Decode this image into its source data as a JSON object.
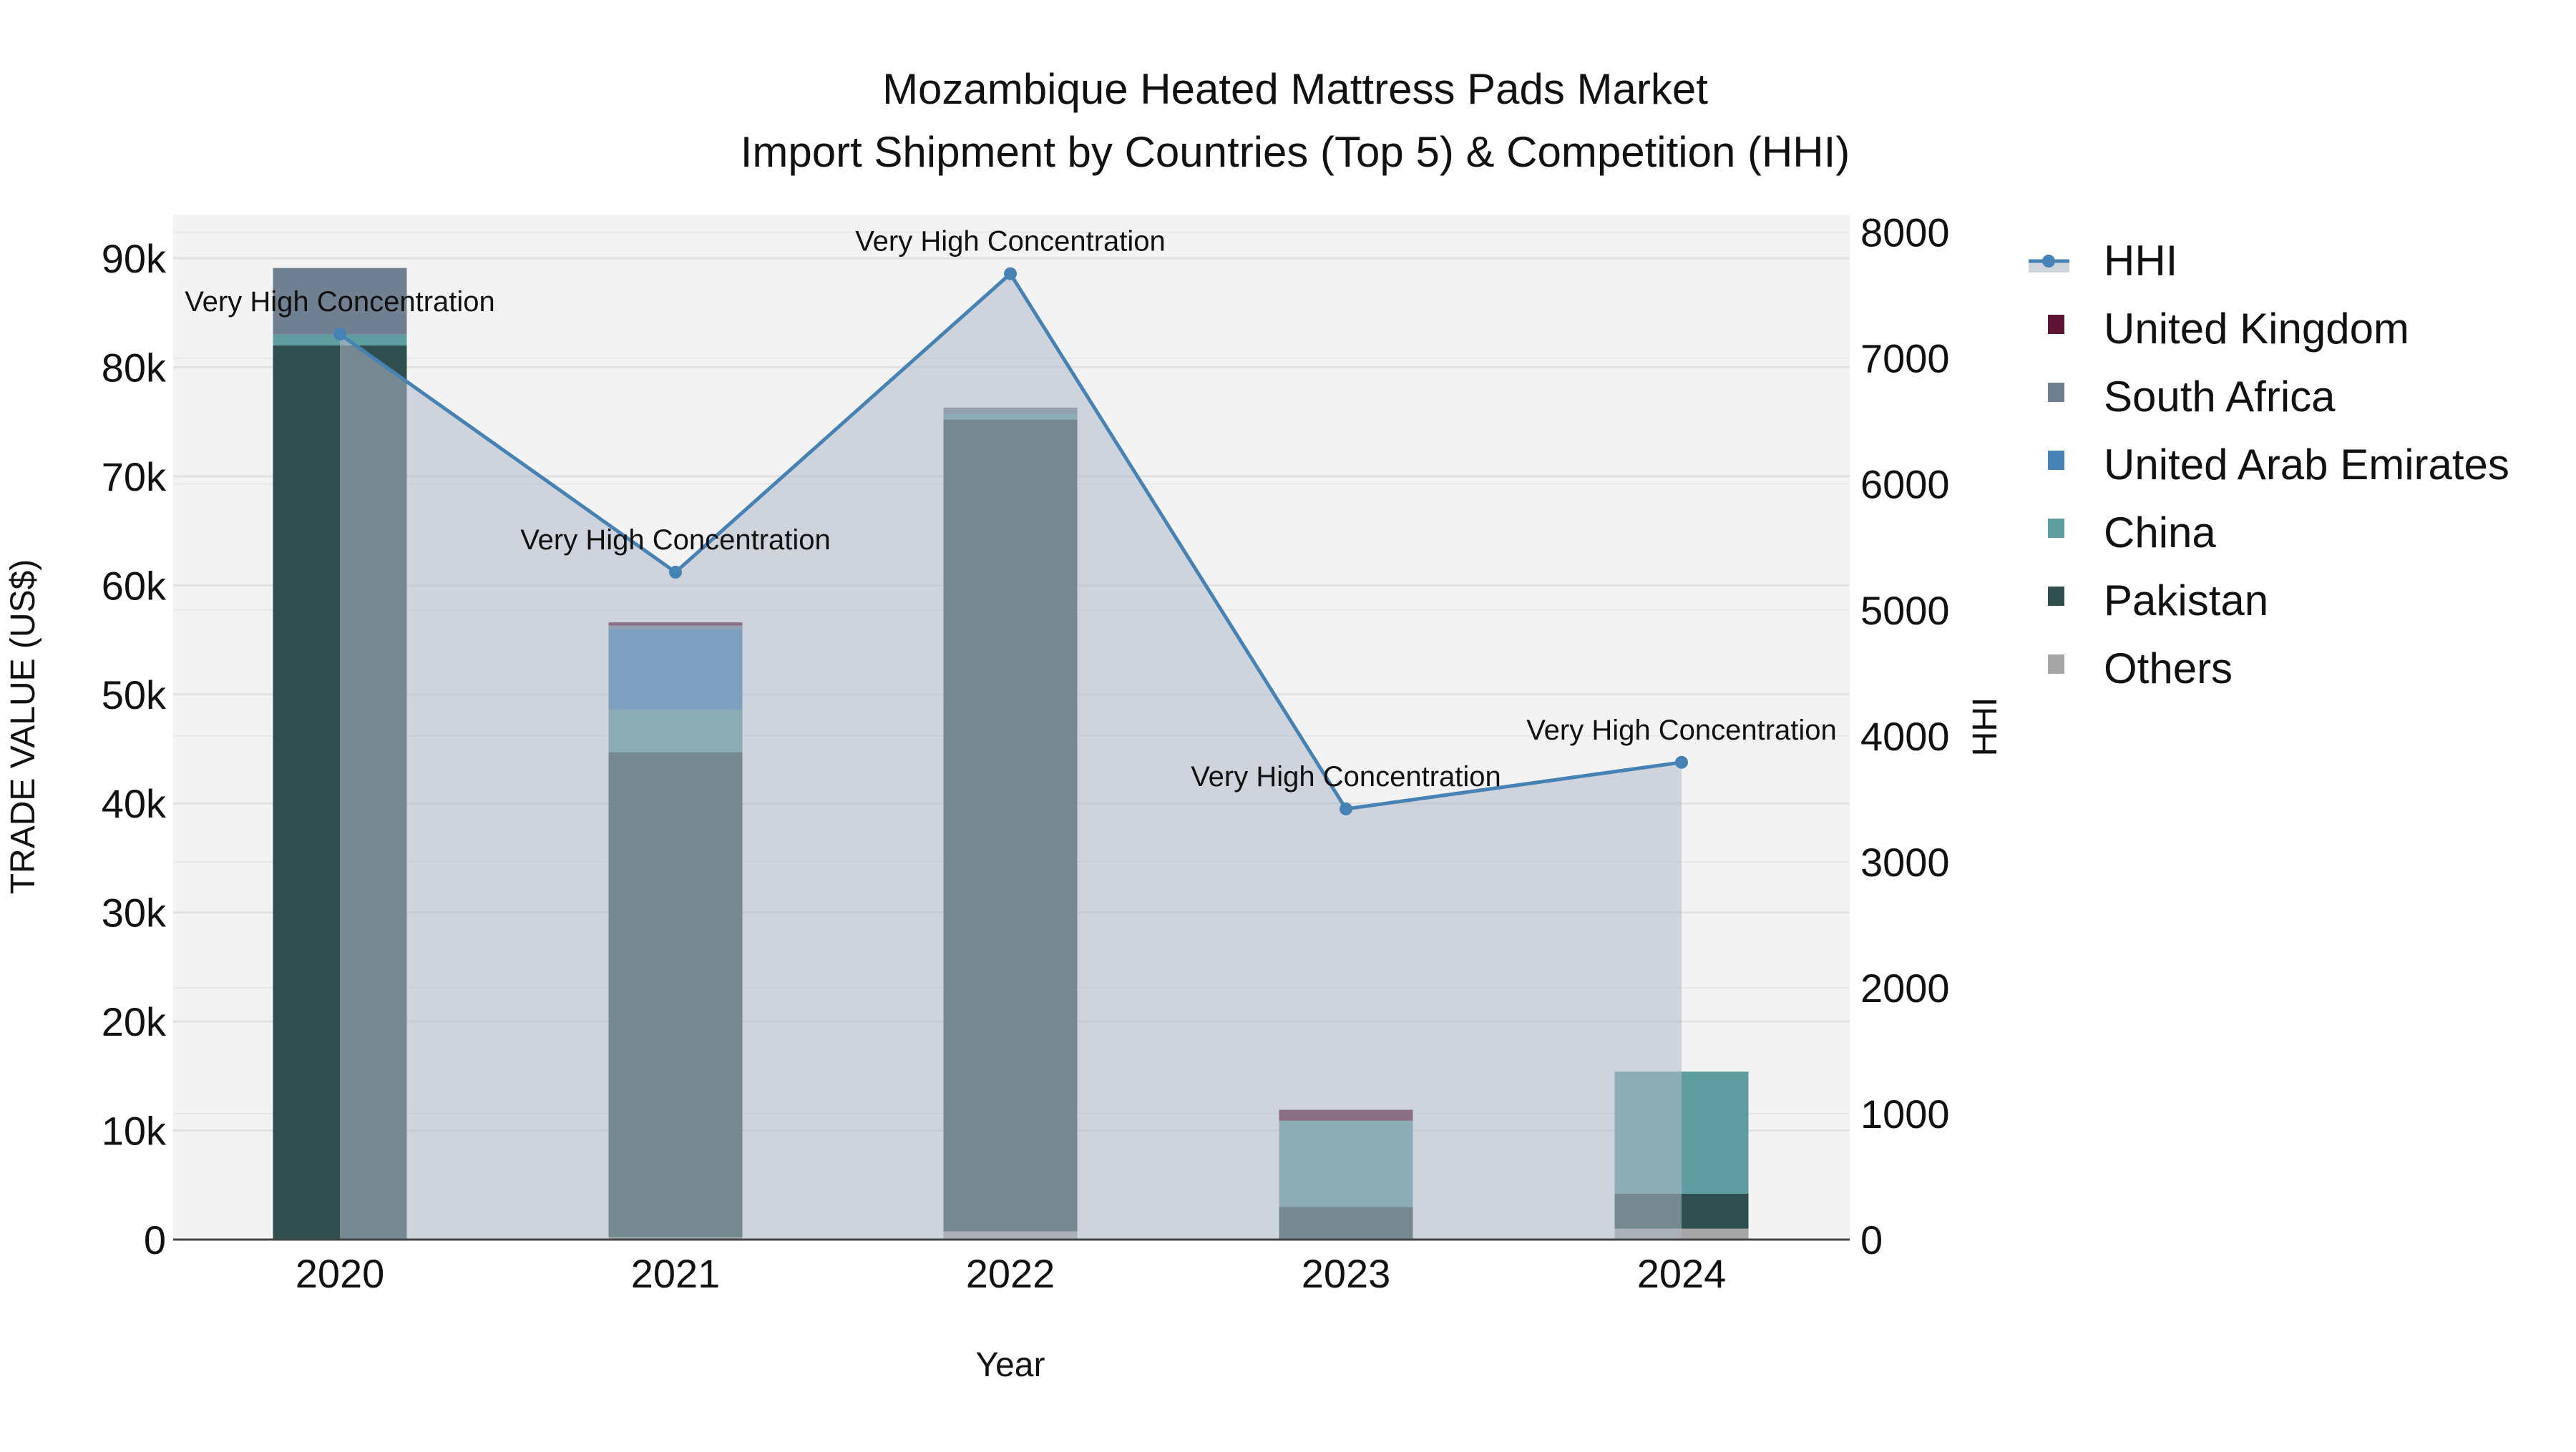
{
  "chart_data": {
    "type": "bar",
    "title": "Mozambique Heated Mattress Pads Market",
    "subtitle": "Import Shipment by Countries (Top 5) & Competition (HHI)",
    "xlabel": "Year",
    "ylabel": "TRADE VALUE (US$)",
    "y2label": "HHI",
    "categories": [
      "2020",
      "2021",
      "2022",
      "2023",
      "2024"
    ],
    "ylim": [
      0,
      94000
    ],
    "y2lim": [
      0,
      8140
    ],
    "yticks": [
      0,
      10000,
      20000,
      30000,
      40000,
      50000,
      60000,
      70000,
      80000,
      90000
    ],
    "ytick_labels": [
      "0",
      "10k",
      "20k",
      "30k",
      "40k",
      "50k",
      "60k",
      "70k",
      "80k",
      "90k"
    ],
    "y2ticks": [
      0,
      1000,
      2000,
      3000,
      4000,
      5000,
      6000,
      7000,
      8000
    ],
    "y2tick_labels": [
      "0",
      "1000",
      "2000",
      "3000",
      "4000",
      "5000",
      "6000",
      "7000",
      "8000"
    ],
    "grid": true,
    "legend_position": "right",
    "series": [
      {
        "name": "Others",
        "color": "#a6a6a6",
        "values": [
          0,
          200,
          750,
          0,
          1000
        ]
      },
      {
        "name": "Pakistan",
        "color": "#2f4f4f",
        "values": [
          82000,
          44500,
          74450,
          3000,
          3200
        ]
      },
      {
        "name": "China",
        "color": "#5f9ea0",
        "values": [
          1000,
          3900,
          500,
          7900,
          11200
        ]
      },
      {
        "name": "United Arab Emirates",
        "color": "#4682b4",
        "values": [
          0,
          7400,
          0,
          0,
          0
        ]
      },
      {
        "name": "South Africa",
        "color": "#708090",
        "values": [
          6100,
          300,
          600,
          0,
          0
        ]
      },
      {
        "name": "United Kingdom",
        "color": "#5c1434",
        "values": [
          0,
          300,
          0,
          1000,
          0
        ]
      }
    ],
    "legend_order": [
      "United Kingdom",
      "South Africa",
      "United Arab Emirates",
      "China",
      "Pakistan",
      "Others"
    ],
    "hhi": {
      "name": "HHI",
      "color": "#4682b4",
      "values": [
        7190,
        5300,
        7670,
        3420,
        3790
      ],
      "annotations": [
        "Very High Concentration",
        "Very High Concentration",
        "Very High Concentration",
        "Very High Concentration",
        "Very High Concentration"
      ]
    }
  }
}
